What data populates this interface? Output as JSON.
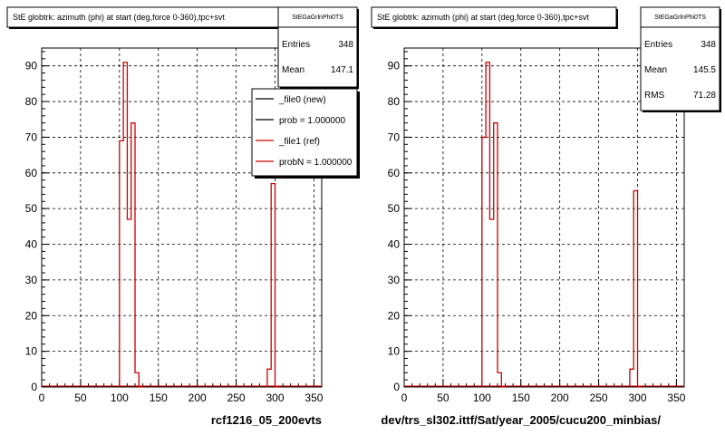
{
  "chart_data": [
    {
      "type": "histogram",
      "title": "StE globtrk: azimuth (phi) at start (deg,force 0-360),tpc+svt",
      "xlabel": "rcf1216_05_200evts",
      "xlim": [
        0,
        360
      ],
      "ylim": [
        0,
        95
      ],
      "xticks": [
        0,
        50,
        100,
        150,
        200,
        250,
        300,
        350
      ],
      "yticks": [
        0,
        10,
        20,
        30,
        40,
        50,
        60,
        70,
        80,
        90
      ],
      "grid": true,
      "stats": {
        "name": "StEGaGrlnPhi0TS",
        "rows": [
          {
            "label": "Entries",
            "value": "348"
          },
          {
            "label": "Mean",
            "value": "147.1"
          }
        ]
      },
      "legend": {
        "position": "top-right",
        "entries": [
          {
            "label": "_file0 (new)",
            "color": "#000000"
          },
          {
            "label": "prob = 1.000000",
            "color": "#000000"
          },
          {
            "label": "_file1 (ref)",
            "color": "#cc0000"
          },
          {
            "label": "probN = 1.000000",
            "color": "#cc0000"
          }
        ]
      },
      "bins": {
        "edges": [
          100,
          105,
          110,
          115,
          120,
          125,
          130
        ],
        "values": [
          69,
          91,
          47,
          74,
          4,
          0
        ],
        "color": "#cc0000"
      },
      "bins2": {
        "edges": [
          290,
          295,
          300,
          305
        ],
        "values": [
          5,
          57,
          0
        ],
        "color": "#cc0000"
      }
    },
    {
      "type": "histogram",
      "title": "StE globtrk: azimuth (phi) at start (deg,force 0-360),tpc+svt",
      "xlabel": "dev/trs_sl302.ittf/Sat/year_2005/cucu200_minbias/",
      "xlim": [
        0,
        360
      ],
      "ylim": [
        0,
        95
      ],
      "xticks": [
        0,
        50,
        100,
        150,
        200,
        250,
        300,
        350
      ],
      "yticks": [
        0,
        10,
        20,
        30,
        40,
        50,
        60,
        70,
        80,
        90
      ],
      "grid": true,
      "stats": {
        "name": "StEGaGrlnPhi0TS",
        "rows": [
          {
            "label": "Entries",
            "value": "348"
          },
          {
            "label": "Mean",
            "value": "145.5"
          },
          {
            "label": "RMS",
            "value": "71.28"
          }
        ]
      },
      "bins": {
        "edges": [
          100,
          105,
          110,
          115,
          120,
          125,
          130
        ],
        "values": [
          70,
          91,
          47,
          74,
          4,
          0
        ],
        "color": "#cc0000"
      },
      "bins2": {
        "edges": [
          290,
          295,
          300,
          305
        ],
        "values": [
          5,
          55,
          0
        ],
        "color": "#cc0000"
      }
    }
  ]
}
